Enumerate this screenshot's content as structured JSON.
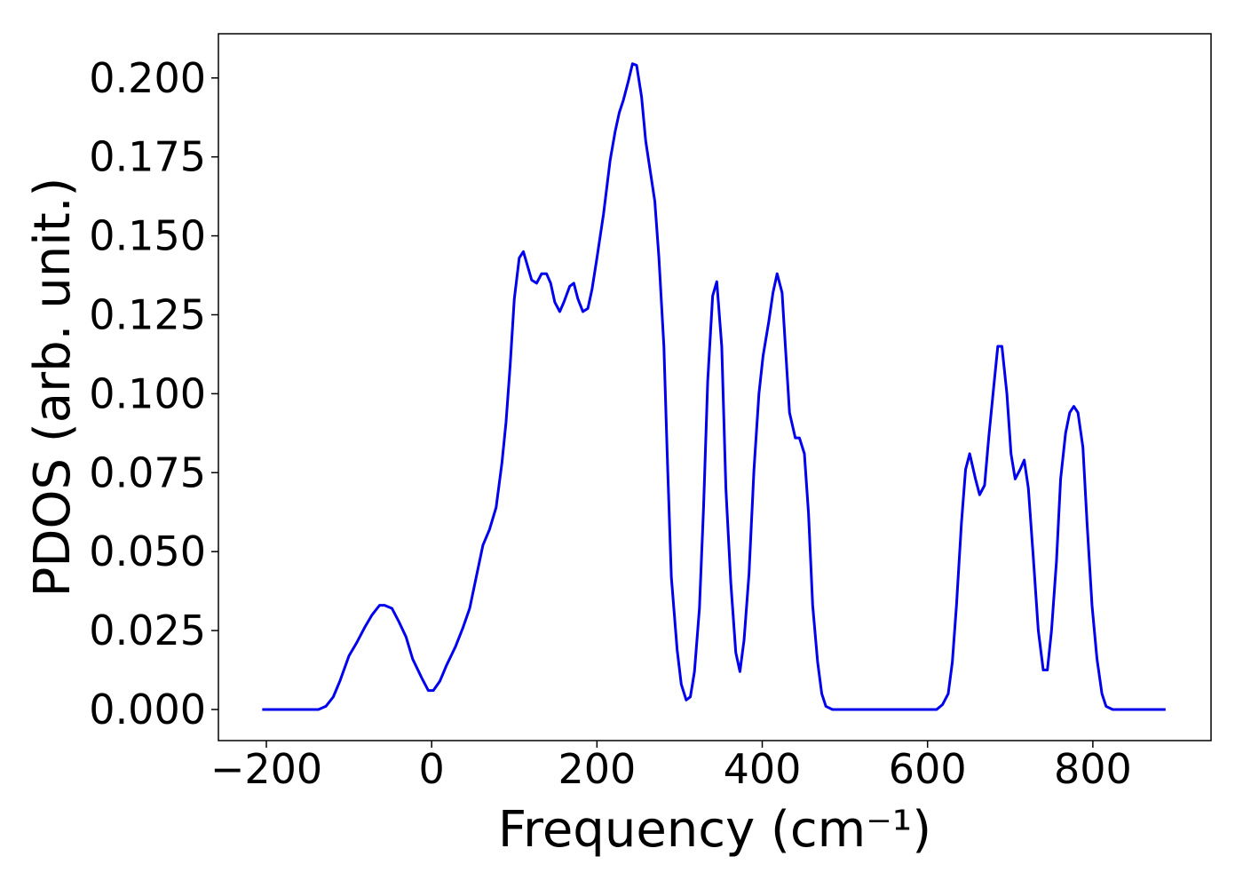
{
  "chart_data": {
    "type": "line",
    "xlabel": "Frequency (cm⁻¹)",
    "ylabel": "PDOS (arb. unit.)",
    "x": [
      -205,
      -137,
      -128,
      -119,
      -111,
      -100,
      -91,
      -81,
      -72,
      -63,
      -57,
      -48,
      -40,
      -31,
      -23,
      -12,
      -4,
      2,
      10,
      18,
      29,
      38,
      46,
      54,
      62,
      70,
      78,
      85,
      90,
      95,
      100,
      106,
      111,
      121,
      127,
      133,
      139,
      144,
      149,
      155,
      160,
      167,
      172,
      177,
      183,
      189,
      194,
      200,
      208,
      216,
      222,
      227,
      232,
      238,
      243,
      248,
      254,
      259,
      270,
      275,
      281,
      285,
      290,
      297,
      302,
      308,
      313,
      318,
      324,
      329,
      334,
      340,
      345,
      351,
      356,
      362,
      368,
      373,
      378,
      384,
      390,
      396,
      401,
      408,
      413,
      418,
      424,
      428,
      433,
      440,
      445,
      451,
      456,
      461,
      467,
      472,
      477,
      485,
      611,
      618,
      625,
      630,
      635,
      641,
      646,
      651,
      658,
      663,
      669,
      674,
      680,
      685,
      690,
      696,
      701,
      706,
      712,
      717,
      722,
      728,
      734,
      740,
      745,
      750,
      756,
      761,
      767,
      772,
      777,
      782,
      788,
      793,
      799,
      805,
      811,
      816,
      824,
      888
    ],
    "series": [
      {
        "name": "PDOS",
        "color": "#0000ee",
        "values": [
          0,
          0,
          0.001,
          0.004,
          0.009,
          0.017,
          0.021,
          0.026,
          0.03,
          0.033,
          0.033,
          0.032,
          0.028,
          0.023,
          0.016,
          0.01,
          0.006,
          0.006,
          0.009,
          0.014,
          0.02,
          0.026,
          0.032,
          0.042,
          0.052,
          0.057,
          0.064,
          0.078,
          0.091,
          0.109,
          0.13,
          0.143,
          0.145,
          0.136,
          0.135,
          0.138,
          0.138,
          0.135,
          0.129,
          0.126,
          0.129,
          0.134,
          0.135,
          0.13,
          0.126,
          0.127,
          0.133,
          0.143,
          0.157,
          0.174,
          0.183,
          0.189,
          0.193,
          0.199,
          0.2045,
          0.204,
          0.194,
          0.18,
          0.161,
          0.143,
          0.115,
          0.081,
          0.042,
          0.019,
          0.008,
          0.003,
          0.004,
          0.012,
          0.032,
          0.064,
          0.104,
          0.131,
          0.1355,
          0.115,
          0.07,
          0.04,
          0.018,
          0.012,
          0.022,
          0.043,
          0.076,
          0.1,
          0.112,
          0.123,
          0.132,
          0.138,
          0.132,
          0.115,
          0.094,
          0.086,
          0.086,
          0.081,
          0.062,
          0.033,
          0.015,
          0.005,
          0.001,
          0,
          0,
          0.0015,
          0.005,
          0.015,
          0.033,
          0.059,
          0.076,
          0.081,
          0.073,
          0.068,
          0.071,
          0.086,
          0.102,
          0.115,
          0.115,
          0.1,
          0.081,
          0.073,
          0.076,
          0.079,
          0.07,
          0.048,
          0.025,
          0.0125,
          0.0125,
          0.025,
          0.047,
          0.073,
          0.0875,
          0.094,
          0.096,
          0.094,
          0.083,
          0.059,
          0.033,
          0.016,
          0.005,
          0.001,
          0,
          0
        ]
      }
    ],
    "xlim": [
      -258,
      943
    ],
    "ylim": [
      -0.00985,
      0.214
    ],
    "xticks": [
      {
        "value": -200,
        "label": "−200"
      },
      0,
      200,
      400,
      600,
      800
    ],
    "yticks": [
      {
        "value": 0,
        "label": "0.000"
      },
      {
        "value": 0.025,
        "label": "0.025"
      },
      {
        "value": 0.05,
        "label": "0.050"
      },
      {
        "value": 0.075,
        "label": "0.075"
      },
      {
        "value": 0.1,
        "label": "0.100"
      },
      {
        "value": 0.125,
        "label": "0.125"
      },
      {
        "value": 0.15,
        "label": "0.150"
      },
      {
        "value": 0.175,
        "label": "0.175"
      },
      {
        "value": 0.2,
        "label": "0.200"
      }
    ],
    "grid": false
  }
}
